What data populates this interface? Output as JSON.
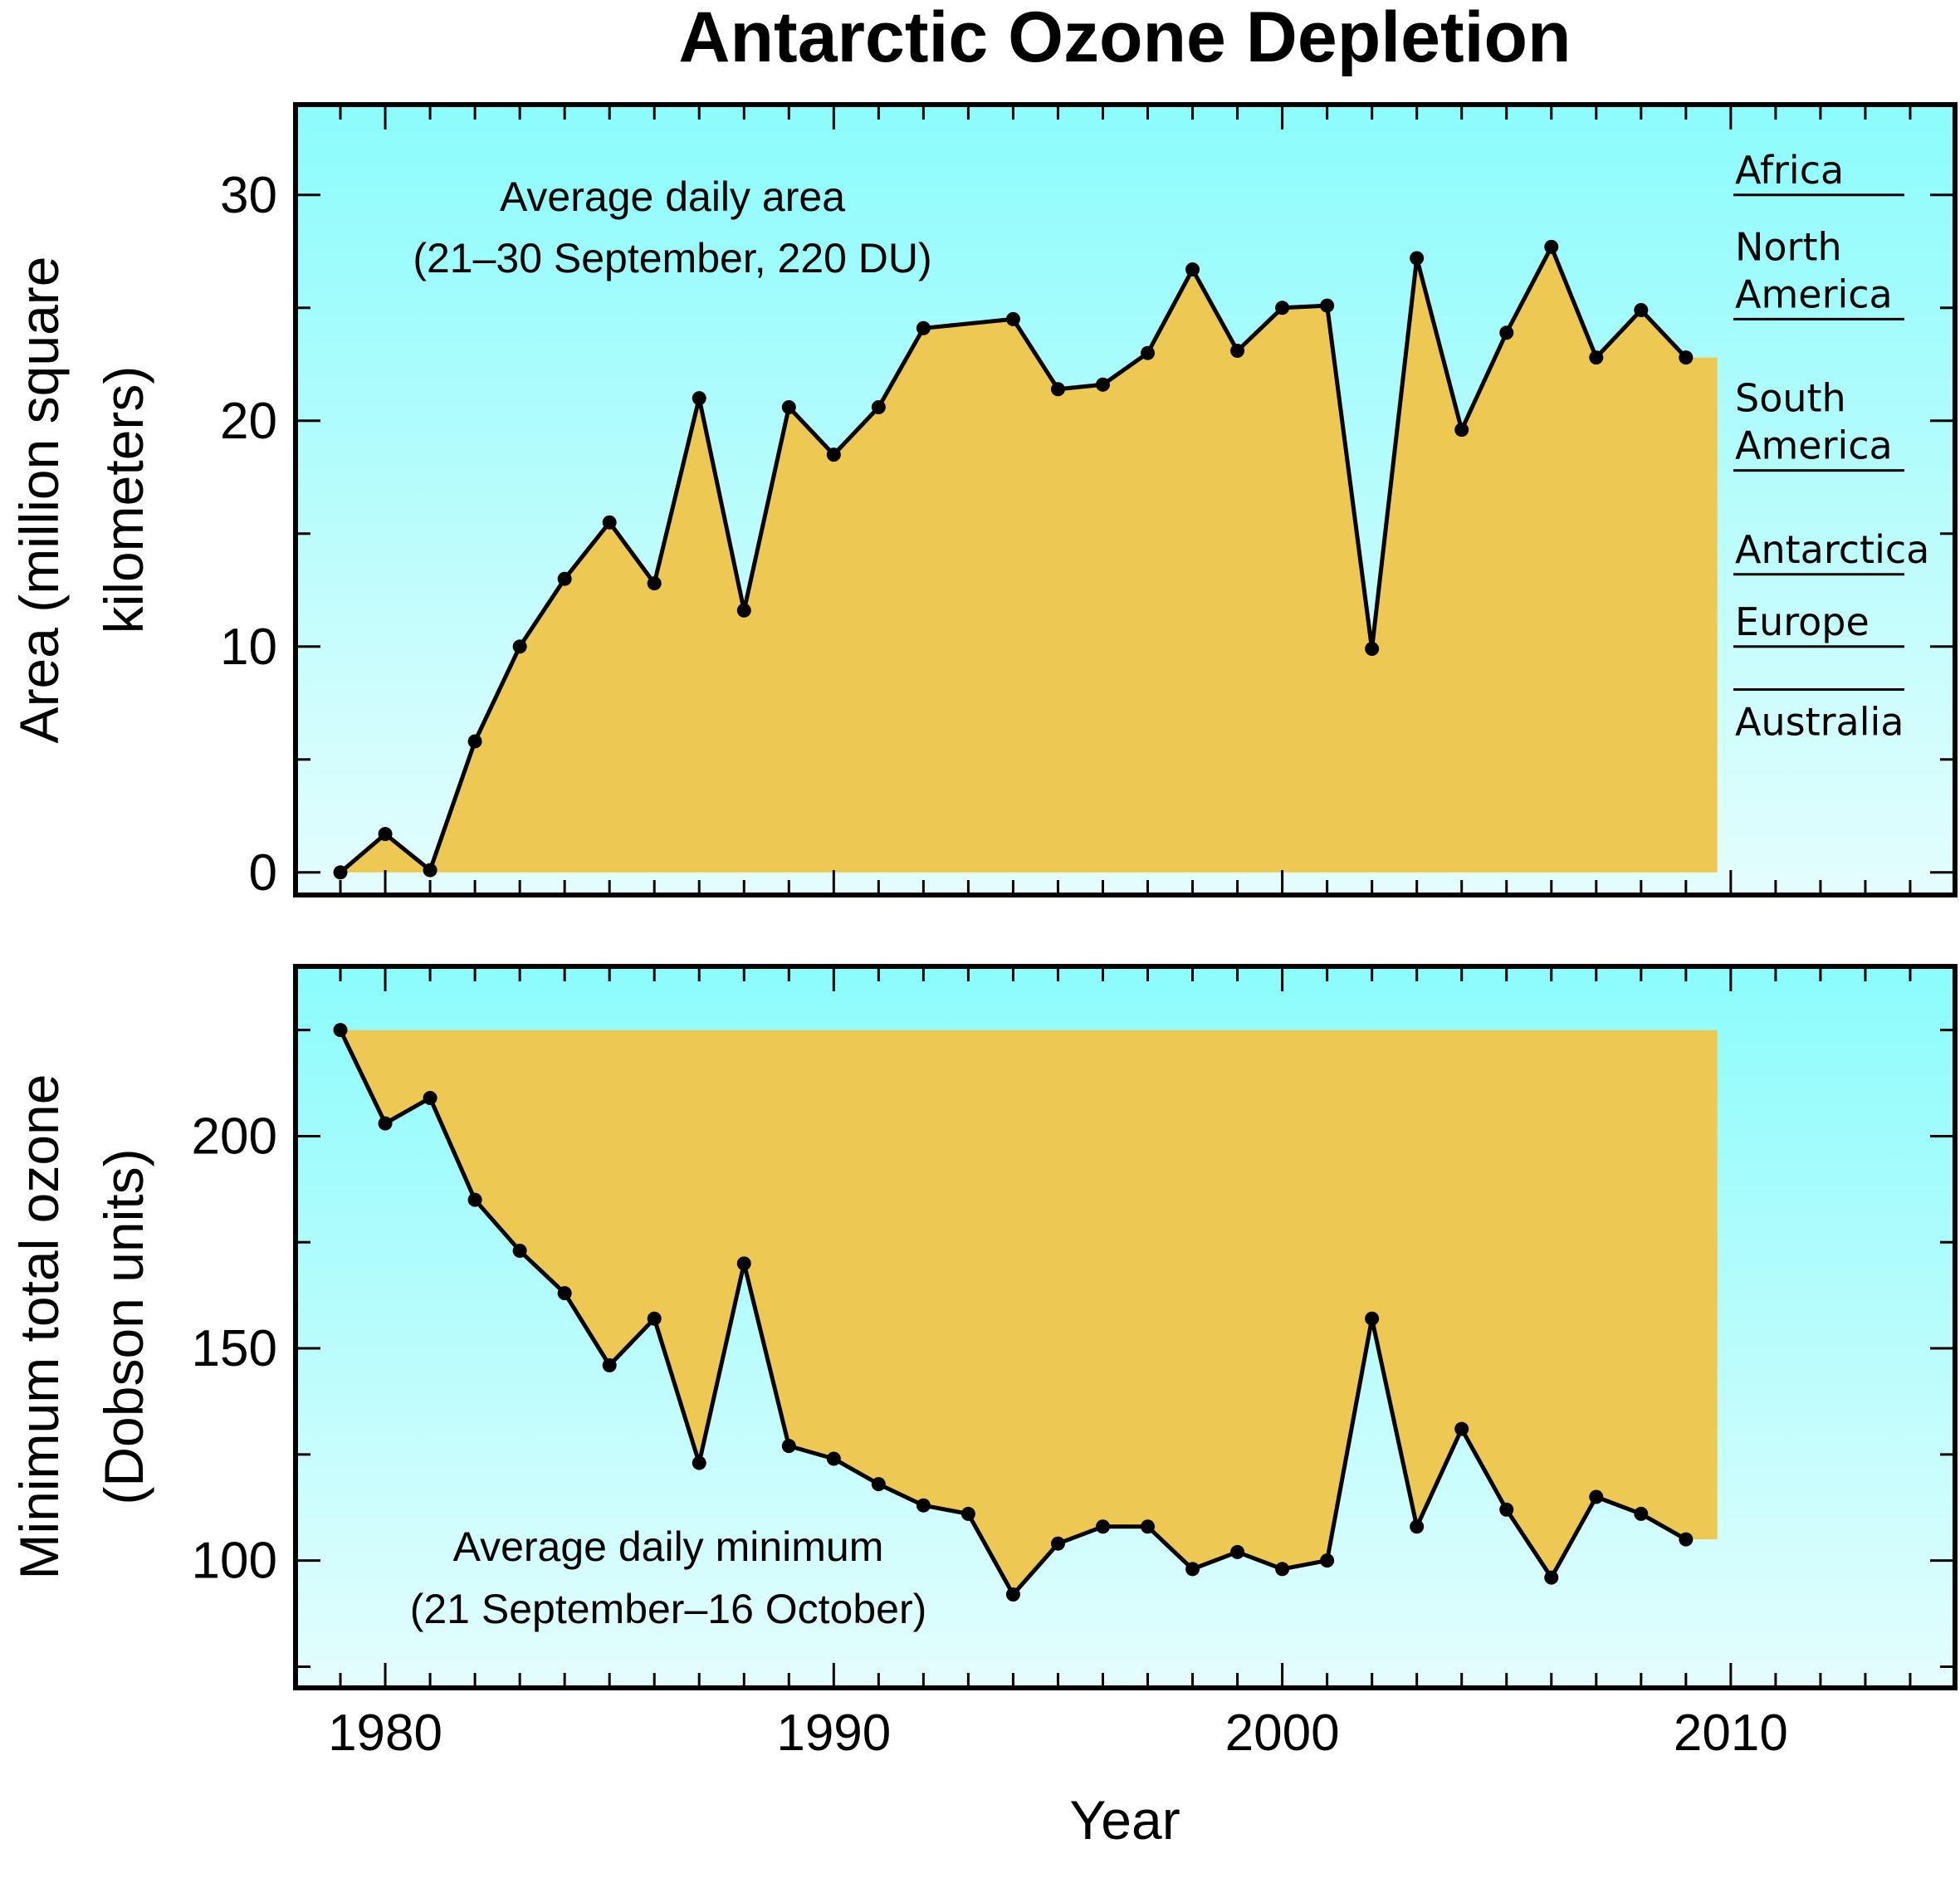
{
  "colors": {
    "bg_top": "#8cfcfc",
    "bg_bottom": "#e4fdfd",
    "fill": "#edc953",
    "line": "#000000",
    "frame": "#000000"
  },
  "chart_data": [
    {
      "type": "area",
      "title": "Antarctic Ozone Depletion",
      "xlabel": "Year",
      "ylabel": "Area (million square kilometers)",
      "ylabel_lines": [
        "Area (million square",
        "kilometers)"
      ],
      "annotation_lines": [
        "Average daily area",
        "(21–30 September, 220 DU)"
      ],
      "x": [
        1979,
        1980,
        1981,
        1982,
        1983,
        1984,
        1985,
        1986,
        1987,
        1988,
        1989,
        1990,
        1991,
        1992,
        1994,
        1995,
        1996,
        1997,
        1998,
        1999,
        2000,
        2001,
        2002,
        2003,
        2004,
        2005,
        2006,
        2007,
        2008,
        2009
      ],
      "y": [
        0.0,
        1.7,
        0.1,
        5.8,
        10.0,
        13.0,
        15.5,
        12.8,
        21.0,
        11.6,
        20.6,
        18.5,
        20.6,
        24.1,
        24.5,
        21.4,
        21.6,
        23.0,
        26.7,
        23.1,
        25.0,
        25.1,
        9.9,
        27.2,
        19.6,
        23.9,
        27.7,
        22.8,
        24.9,
        22.8
      ],
      "unmarked_points": [
        {
          "x": 1993,
          "y": 24.3
        }
      ],
      "fill_baseline": 0,
      "fill_to_x": 2009.7,
      "xlim": [
        1978,
        2015
      ],
      "ylim": [
        -1,
        34
      ],
      "yticks": [
        0,
        10,
        20,
        30
      ],
      "ytick_labels": [
        "0",
        "10",
        "20",
        "30"
      ],
      "ytick_minor": [
        5,
        15,
        25
      ],
      "reference_labels": [
        {
          "label_lines": [
            "Africa"
          ],
          "value": 30.0
        },
        {
          "label_lines": [
            "North",
            "America"
          ],
          "value": 24.5
        },
        {
          "label_lines": [
            "South",
            "America"
          ],
          "value": 17.8
        },
        {
          "label_lines": [
            "Antarctica"
          ],
          "value": 13.2
        },
        {
          "label_lines": [
            "Europe"
          ],
          "value": 10.0
        },
        {
          "label_lines": [
            "Australia"
          ],
          "value": 8.1
        }
      ]
    },
    {
      "type": "area",
      "xlabel": "Year",
      "ylabel": "Minimum total ozone (Dobson units)",
      "ylabel_lines": [
        "Minimum total ozone",
        "(Dobson units)"
      ],
      "annotation_lines": [
        "Average daily minimum",
        "(21 September–16 October)"
      ],
      "x": [
        1979,
        1980,
        1981,
        1982,
        1983,
        1984,
        1985,
        1986,
        1987,
        1988,
        1989,
        1990,
        1991,
        1992,
        1993,
        1994,
        1995,
        1996,
        1997,
        1998,
        1999,
        2000,
        2001,
        2002,
        2003,
        2004,
        2005,
        2006,
        2007,
        2008,
        2009
      ],
      "y": [
        225,
        203,
        209,
        185,
        173,
        163,
        146,
        157,
        123,
        170,
        127,
        124,
        118,
        113,
        111,
        92,
        104,
        108,
        108,
        98,
        102,
        98,
        100,
        157,
        108,
        131,
        112,
        96,
        115,
        111,
        105
      ],
      "fill_baseline": 225,
      "fill_to_x": 2009.7,
      "xlim": [
        1978,
        2015
      ],
      "ylim": [
        70,
        240
      ],
      "yticks": [
        100,
        150,
        200
      ],
      "ytick_labels": [
        "100",
        "150",
        "200"
      ],
      "ytick_minor": [
        75,
        125,
        175,
        225
      ],
      "xticks": [
        1980,
        1990,
        2000,
        2010
      ],
      "xtick_labels": [
        "1980",
        "1990",
        "2000",
        "2010"
      ]
    }
  ]
}
